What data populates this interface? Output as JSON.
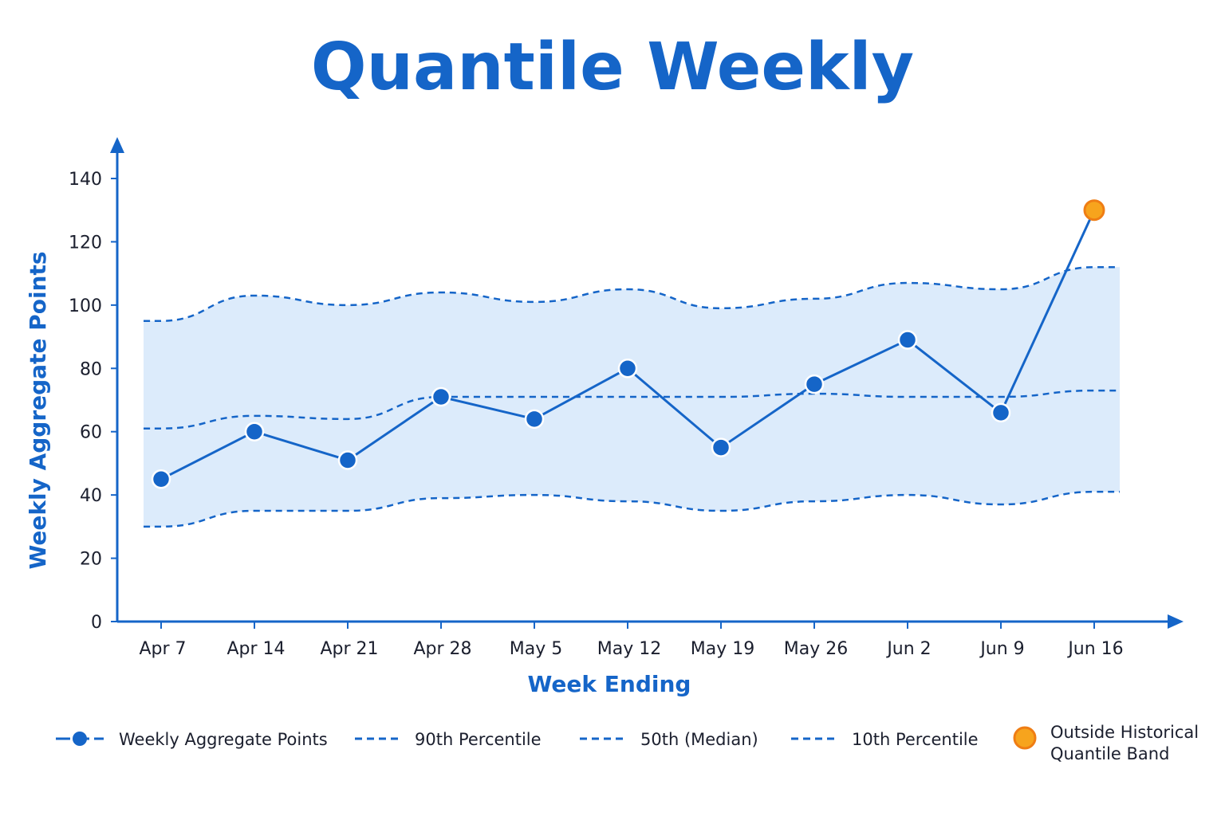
{
  "colors": {
    "accent": "#1565c8",
    "band_fill": "#dcebfb",
    "outlier": "#f7a41d",
    "outlier_stroke": "#ef7d14",
    "text": "#1b1f2e"
  },
  "chart_data": {
    "type": "line",
    "title": "Quantile Weekly",
    "xlabel": "Week Ending",
    "ylabel": "Weekly Aggregate Points",
    "ylim": [
      0,
      145
    ],
    "yticks": [
      0,
      20,
      40,
      60,
      80,
      100,
      120,
      140
    ],
    "categories": [
      "Apr 7",
      "Apr 14",
      "Apr 21",
      "Apr 28",
      "May 5",
      "May 12",
      "May 19",
      "May 26",
      "Jun 2",
      "Jun 9",
      "Jun 16"
    ],
    "series": [
      {
        "name": "Weekly Aggregate Points",
        "style": "solid-line-with-markers",
        "values": [
          45,
          60,
          51,
          71,
          64,
          80,
          55,
          75,
          89,
          66,
          130
        ]
      },
      {
        "name": "90th Percentile",
        "style": "dashed",
        "values": [
          95,
          103,
          100,
          104,
          101,
          105,
          99,
          102,
          107,
          105,
          112
        ]
      },
      {
        "name": "50th (Median)",
        "style": "dashed",
        "values": [
          61,
          65,
          64,
          71,
          71,
          71,
          71,
          72,
          71,
          71,
          73
        ]
      },
      {
        "name": "10th Percentile",
        "style": "dashed",
        "values": [
          30,
          35,
          35,
          39,
          40,
          38,
          35,
          38,
          40,
          37,
          41
        ]
      }
    ],
    "outliers": [
      {
        "name": "Outside Historical Quantile Band",
        "category": "Jun 16",
        "value": 130
      }
    ],
    "shaded_band": "10th to 90th percentile",
    "grid": false,
    "legend_position": "bottom"
  },
  "legend": {
    "items": [
      {
        "label": "Weekly Aggregate Points",
        "icon": "line-with-dot-icon"
      },
      {
        "label": "90th Percentile",
        "icon": "dashed-line-icon"
      },
      {
        "label": "50th (Median)",
        "icon": "dashed-line-icon"
      },
      {
        "label": "10th Percentile",
        "icon": "dashed-line-icon"
      },
      {
        "label_lines": [
          "Outside Historical",
          "Quantile Band"
        ],
        "icon": "orange-dot-icon"
      }
    ]
  }
}
